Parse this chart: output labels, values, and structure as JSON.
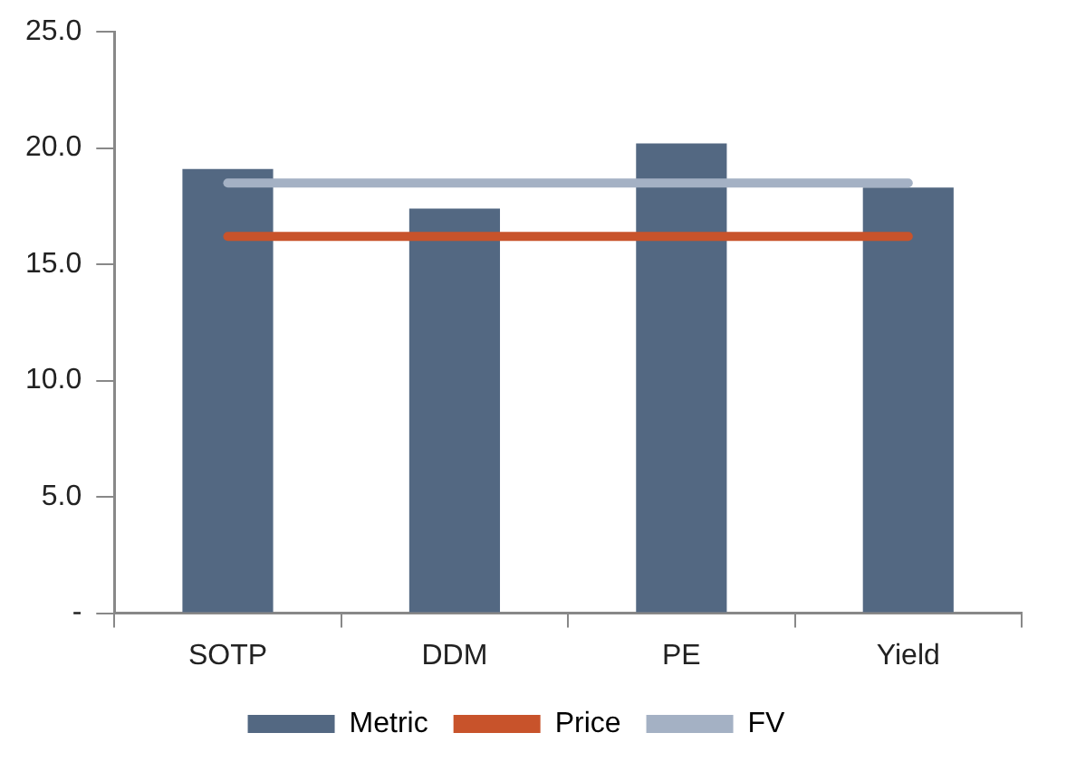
{
  "chart_data": {
    "type": "bar",
    "categories": [
      "SOTP",
      "DDM",
      "PE",
      "Yield"
    ],
    "series": [
      {
        "name": "Metric",
        "color": "#536882",
        "values": [
          19.1,
          17.4,
          20.2,
          18.3
        ]
      },
      {
        "name": "Price",
        "type": "line",
        "color": "#c8532b",
        "values": [
          16.2,
          16.2,
          16.2,
          16.2
        ]
      },
      {
        "name": "FV",
        "type": "line",
        "color": "#a4b1c4",
        "values": [
          18.5,
          18.5,
          18.5,
          18.5
        ]
      }
    ],
    "ylim": [
      0,
      25
    ],
    "yticks": [
      {
        "value": 0,
        "label": "-"
      },
      {
        "value": 5,
        "label": "5.0"
      },
      {
        "value": 10,
        "label": "10.0"
      },
      {
        "value": 15,
        "label": "15.0"
      },
      {
        "value": 20,
        "label": "20.0"
      },
      {
        "value": 25,
        "label": "25.0"
      }
    ],
    "grid": false,
    "legend": "bottom",
    "marker": "none"
  }
}
